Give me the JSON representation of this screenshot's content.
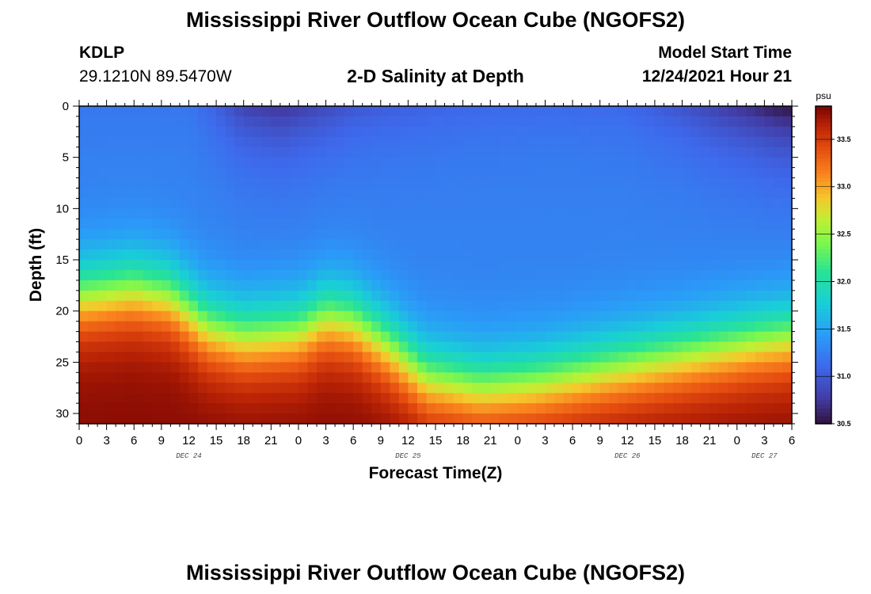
{
  "header": {
    "title": "Mississippi River Outflow Ocean Cube (NGOFS2)",
    "station_id": "KDLP",
    "station_coords": "29.1210N  89.5470W",
    "subtitle": "2-D Salinity at Depth",
    "model_start_label": "Model Start Time",
    "model_start_value": "12/24/2021 Hour 21"
  },
  "footer": {
    "title": "Mississippi River Outflow Ocean Cube (NGOFS2)"
  },
  "chart_data": {
    "type": "heatmap",
    "title": "2-D Salinity at Depth",
    "xlabel": "Forecast Time(Z)",
    "ylabel": "Depth (ft)",
    "x_tick_labels": [
      "0",
      "3",
      "6",
      "9",
      "12",
      "15",
      "18",
      "21",
      "0",
      "3",
      "6",
      "9",
      "12",
      "15",
      "18",
      "21",
      "0",
      "3",
      "6",
      "9",
      "12",
      "15",
      "18",
      "21",
      "0",
      "3",
      "6"
    ],
    "x_range_hours": [
      0,
      78
    ],
    "date_labels": [
      {
        "label": "DEC 24",
        "hour": 12
      },
      {
        "label": "DEC 25",
        "hour": 36
      },
      {
        "label": "DEC 26",
        "hour": 60
      },
      {
        "label": "DEC 27",
        "hour": 75
      }
    ],
    "y_tick_labels": [
      "0",
      "5",
      "10",
      "15",
      "20",
      "25",
      "30"
    ],
    "ylim": [
      0,
      31
    ],
    "y_inverted": true,
    "colorbar": {
      "unit": "psu",
      "min": 30.5,
      "max": 33.85,
      "tick_labels": [
        "30.5",
        "31.0",
        "31.5",
        "32.0",
        "32.5",
        "33.0",
        "33.5"
      ],
      "colormap": "turbo"
    },
    "halocline_depth_ft": {
      "hours": [
        0,
        6,
        10,
        14,
        18,
        24,
        27,
        30,
        34,
        38,
        44,
        50,
        56,
        62,
        68,
        74,
        78
      ],
      "depth": [
        18.5,
        17.8,
        18.5,
        21.5,
        22.5,
        22.0,
        20.5,
        21.0,
        23.5,
        26.5,
        27.5,
        27.0,
        26.0,
        25.0,
        24.0,
        23.0,
        22.5
      ]
    },
    "halocline_thickness_ft": 2.3,
    "surface_salinity_psu": {
      "hours": [
        0,
        6,
        12,
        15,
        18,
        22,
        26,
        30,
        36,
        44,
        52,
        60,
        66,
        70,
        74,
        76,
        78
      ],
      "values": [
        31.2,
        31.2,
        31.2,
        31.05,
        30.82,
        30.72,
        30.85,
        30.98,
        31.05,
        31.1,
        31.12,
        31.1,
        30.95,
        30.8,
        30.65,
        30.55,
        30.5
      ]
    },
    "bottom_salinity_psu": 33.8
  }
}
